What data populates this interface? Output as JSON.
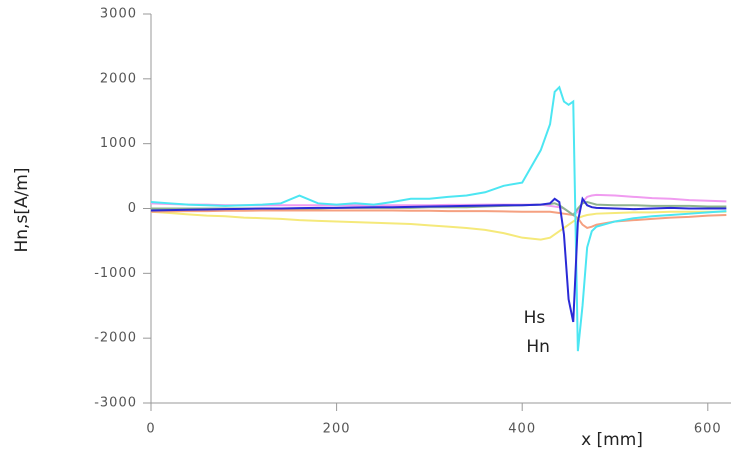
{
  "chart_data": {
    "type": "line",
    "xlabel": "x [mm]",
    "ylabel": "Hn,s[A/m]",
    "x": [
      0,
      20,
      40,
      60,
      80,
      100,
      120,
      140,
      160,
      180,
      200,
      220,
      240,
      260,
      280,
      300,
      320,
      340,
      360,
      380,
      400,
      420,
      430,
      435,
      440,
      445,
      450,
      455,
      460,
      465,
      470,
      475,
      480,
      500,
      520,
      540,
      560,
      580,
      600,
      620
    ],
    "series": [
      {
        "color": "#f5e97a",
        "values": [
          -50,
          -70,
          -90,
          -110,
          -120,
          -140,
          -150,
          -160,
          -180,
          -190,
          -200,
          -210,
          -220,
          -230,
          -240,
          -260,
          -280,
          -300,
          -330,
          -380,
          -450,
          -480,
          -450,
          -400,
          -350,
          -300,
          -250,
          -200,
          -150,
          -120,
          -100,
          -90,
          -80,
          -70,
          -60,
          -60,
          -50,
          -50,
          -50,
          -50
        ]
      },
      {
        "color": "#f5a080",
        "values": [
          -50,
          -45,
          -40,
          -40,
          -35,
          -35,
          -30,
          -30,
          -30,
          -30,
          -30,
          -30,
          -30,
          -30,
          -35,
          -35,
          -40,
          -40,
          -40,
          -45,
          -50,
          -50,
          -50,
          -60,
          -70,
          -80,
          -90,
          -100,
          -150,
          -250,
          -300,
          -280,
          -250,
          -200,
          -180,
          -160,
          -140,
          -130,
          -110,
          -100
        ]
      },
      {
        "color": "#f09bf0",
        "values": [
          80,
          70,
          60,
          60,
          50,
          50,
          50,
          50,
          50,
          50,
          50,
          50,
          50,
          50,
          50,
          50,
          55,
          55,
          60,
          60,
          60,
          60,
          40,
          30,
          20,
          0,
          -50,
          -100,
          -50,
          100,
          180,
          200,
          210,
          200,
          180,
          160,
          150,
          130,
          120,
          110
        ]
      },
      {
        "color": "#8fb38f",
        "values": [
          0,
          0,
          0,
          0,
          0,
          0,
          0,
          0,
          0,
          0,
          10,
          10,
          10,
          10,
          10,
          20,
          20,
          20,
          30,
          40,
          50,
          60,
          70,
          80,
          50,
          0,
          -50,
          -100,
          0,
          80,
          100,
          80,
          60,
          50,
          50,
          40,
          40,
          40,
          30,
          30
        ]
      },
      {
        "name": "Hn",
        "color": "#4ce6f2",
        "values": [
          100,
          80,
          60,
          50,
          40,
          50,
          60,
          80,
          200,
          80,
          60,
          80,
          60,
          100,
          150,
          150,
          180,
          200,
          250,
          350,
          400,
          900,
          1300,
          1800,
          1870,
          1650,
          1600,
          1650,
          -2200,
          -1500,
          -600,
          -350,
          -280,
          -200,
          -150,
          -120,
          -100,
          -80,
          -60,
          -40
        ]
      },
      {
        "name": "Hs",
        "color": "#2a2ad6",
        "values": [
          -30,
          -25,
          -20,
          -15,
          -10,
          -5,
          0,
          0,
          5,
          10,
          10,
          15,
          20,
          20,
          25,
          30,
          35,
          40,
          45,
          50,
          50,
          60,
          80,
          150,
          100,
          -400,
          -1400,
          -1750,
          -200,
          150,
          50,
          20,
          10,
          0,
          -10,
          0,
          10,
          0,
          0,
          0
        ]
      }
    ],
    "xlim": [
      0,
      625
    ],
    "xticks": [
      0,
      200,
      400,
      600
    ],
    "ylim": [
      -3000,
      3000
    ],
    "yticks": [
      -3000,
      -2000,
      -1000,
      0,
      1000,
      2000,
      3000
    ]
  }
}
